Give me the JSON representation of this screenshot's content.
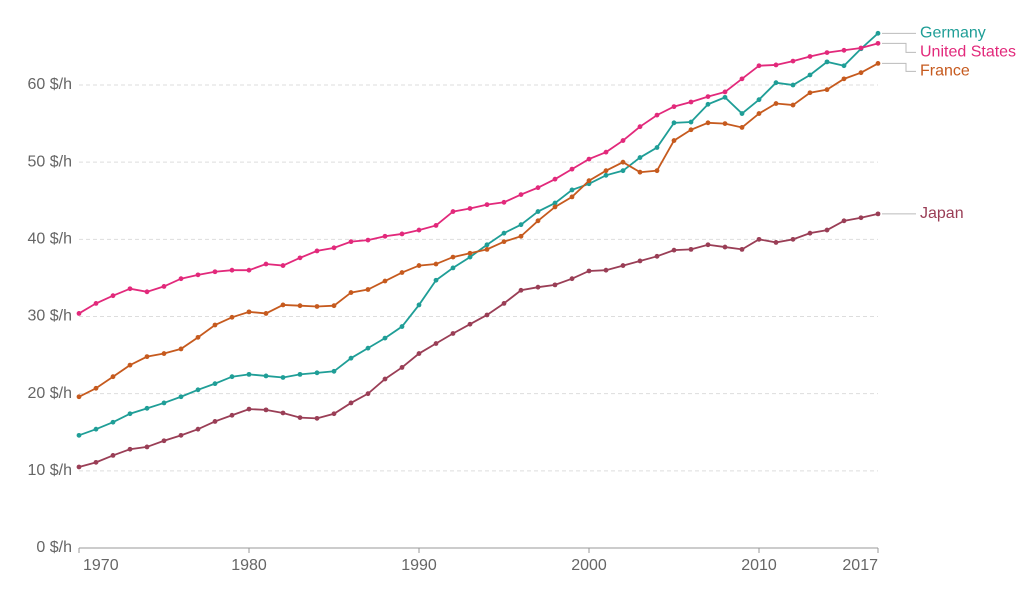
{
  "chart_data": {
    "type": "line",
    "x": [
      1970,
      1971,
      1972,
      1973,
      1974,
      1975,
      1976,
      1977,
      1978,
      1979,
      1980,
      1981,
      1982,
      1983,
      1984,
      1985,
      1986,
      1987,
      1988,
      1989,
      1990,
      1991,
      1992,
      1993,
      1994,
      1995,
      1996,
      1997,
      1998,
      1999,
      2000,
      2001,
      2002,
      2003,
      2004,
      2005,
      2006,
      2007,
      2008,
      2009,
      2010,
      2011,
      2012,
      2013,
      2014,
      2015,
      2016,
      2017
    ],
    "series": [
      {
        "name": "Germany",
        "color": "#1f9e97",
        "values": [
          14.6,
          15.4,
          16.3,
          17.4,
          18.1,
          18.8,
          19.6,
          20.5,
          21.3,
          22.2,
          22.5,
          22.3,
          22.1,
          22.5,
          22.7,
          22.9,
          24.6,
          25.9,
          27.2,
          28.7,
          31.5,
          34.7,
          36.3,
          37.7,
          39.3,
          40.8,
          41.9,
          43.6,
          44.7,
          46.4,
          47.2,
          48.3,
          48.9,
          50.6,
          51.9,
          55.1,
          55.2,
          57.5,
          58.4,
          56.3,
          58.1,
          60.3,
          60.0,
          61.3,
          63.0,
          62.5,
          64.7,
          66.7
        ]
      },
      {
        "name": "United States",
        "color": "#e2297b",
        "values": [
          30.4,
          31.7,
          32.7,
          33.6,
          33.2,
          33.9,
          34.9,
          35.4,
          35.8,
          36.0,
          36.0,
          36.8,
          36.6,
          37.6,
          38.5,
          38.9,
          39.7,
          39.9,
          40.4,
          40.7,
          41.2,
          41.8,
          43.6,
          44.0,
          44.5,
          44.8,
          45.8,
          46.7,
          47.8,
          49.1,
          50.4,
          51.3,
          52.8,
          54.6,
          56.1,
          57.2,
          57.8,
          58.5,
          59.1,
          60.8,
          62.5,
          62.6,
          63.1,
          63.7,
          64.2,
          64.5,
          64.8,
          65.4
        ]
      },
      {
        "name": "France",
        "color": "#c65a1e",
        "values": [
          19.6,
          20.7,
          22.2,
          23.7,
          24.8,
          25.2,
          25.8,
          27.3,
          28.9,
          29.9,
          30.6,
          30.4,
          31.5,
          31.4,
          31.3,
          31.4,
          33.1,
          33.5,
          34.6,
          35.7,
          36.6,
          36.8,
          37.7,
          38.2,
          38.7,
          39.7,
          40.4,
          42.4,
          44.2,
          45.5,
          47.6,
          48.9,
          50.0,
          48.7,
          48.9,
          52.8,
          54.2,
          55.1,
          55.0,
          54.5,
          56.3,
          57.6,
          57.4,
          59.0,
          59.4,
          60.8,
          61.6,
          62.8
        ]
      },
      {
        "name": "Japan",
        "color": "#9a3e56",
        "values": [
          10.5,
          11.1,
          12.0,
          12.8,
          13.1,
          13.9,
          14.6,
          15.4,
          16.4,
          17.2,
          18.0,
          17.9,
          17.5,
          16.9,
          16.8,
          17.4,
          18.8,
          20.0,
          21.9,
          23.4,
          25.2,
          26.5,
          27.8,
          29.0,
          30.2,
          31.7,
          33.4,
          33.8,
          34.1,
          34.9,
          35.9,
          36.0,
          36.6,
          37.2,
          37.8,
          38.6,
          38.7,
          39.3,
          39.0,
          38.7,
          40.0,
          39.6,
          40.0,
          40.8,
          41.2,
          42.4,
          42.8,
          43.3
        ]
      }
    ],
    "xlim": [
      1970,
      2017
    ],
    "xticks": [
      1970,
      1980,
      1990,
      2000,
      2010,
      2017
    ],
    "ylim": [
      0,
      67
    ],
    "yticks": [
      {
        "value": 0,
        "label": "0 $/h"
      },
      {
        "value": 10,
        "label": "10 $/h"
      },
      {
        "value": 20,
        "label": "20 $/h"
      },
      {
        "value": 30,
        "label": "30 $/h"
      },
      {
        "value": 40,
        "label": "40 $/h"
      },
      {
        "value": 50,
        "label": "50 $/h"
      },
      {
        "value": 60,
        "label": "60 $/h"
      }
    ],
    "grid": true
  }
}
